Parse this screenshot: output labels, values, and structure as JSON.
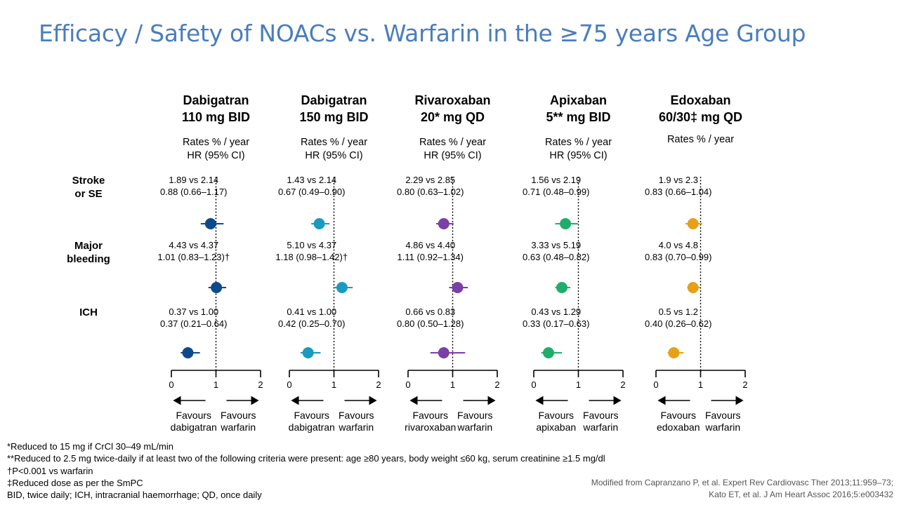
{
  "title": "Efficacy / Safety of NOACs vs. Warfarin in the ≥75 years Age Group",
  "chart_data": {
    "type": "forest",
    "x_ticks": [
      0,
      1,
      2
    ],
    "xlim": [
      0,
      2
    ],
    "reference_line": 1,
    "rows": [
      {
        "label_line1": "Stroke",
        "label_line2": "or SE"
      },
      {
        "label_line1": "Major",
        "label_line2": "bleeding"
      },
      {
        "label_line1": "ICH",
        "label_line2": ""
      }
    ],
    "drugs": [
      {
        "name_line1": "Dabigatran",
        "name_line2": "110 mg BID",
        "rates_label": "Rates % / year",
        "hr_label": "HR (95% CI)",
        "color": "#0c4a8c",
        "favours_left_1": "Favours",
        "favours_left_2": "dabigatran",
        "favours_right_1": "Favours",
        "favours_right_2": "warfarin",
        "results": [
          {
            "rates": "1.89 vs 2.14",
            "hr_text": "0.88 (0.66–1.17)",
            "hr": 0.88,
            "lo": 0.66,
            "hi": 1.17
          },
          {
            "rates": "4.43 vs 4.37",
            "hr_text": "1.01 (0.83–1.23)†",
            "hr": 1.01,
            "lo": 0.83,
            "hi": 1.23
          },
          {
            "rates": "0.37 vs 1.00",
            "hr_text": "0.37 (0.21–0.64)",
            "hr": 0.37,
            "lo": 0.21,
            "hi": 0.64
          }
        ]
      },
      {
        "name_line1": "Dabigatran",
        "name_line2": "150 mg BID",
        "rates_label": "Rates % / year",
        "hr_label": "HR (95% CI)",
        "color": "#1a9ac0",
        "favours_left_1": "Favours",
        "favours_left_2": "dabigatran",
        "favours_right_1": "Favours",
        "favours_right_2": "warfarin",
        "results": [
          {
            "rates": "1.43 vs 2.14",
            "hr_text": "0.67 (0.49–0.90)",
            "hr": 0.67,
            "lo": 0.49,
            "hi": 0.9
          },
          {
            "rates": "5.10 vs 4.37",
            "hr_text": "1.18 (0.98–1.42)†",
            "hr": 1.18,
            "lo": 0.98,
            "hi": 1.42
          },
          {
            "rates": "0.41 vs 1.00",
            "hr_text": "0.42 (0.25–0.70)",
            "hr": 0.42,
            "lo": 0.25,
            "hi": 0.7
          }
        ]
      },
      {
        "name_line1": "Rivaroxaban",
        "name_line2": "20* mg QD",
        "rates_label": "Rates % / year",
        "hr_label": "HR (95% CI)",
        "color": "#7b3fa6",
        "favours_left_1": "Favours",
        "favours_left_2": "rivaroxaban",
        "favours_right_1": "Favours",
        "favours_right_2": "warfarin",
        "results": [
          {
            "rates": "2.29 vs 2.85",
            "hr_text": "0.80 (0.63–1.02)",
            "hr": 0.8,
            "lo": 0.63,
            "hi": 1.02
          },
          {
            "rates": "4.86 vs 4.40",
            "hr_text": "1.11 (0.92–1.34)",
            "hr": 1.11,
            "lo": 0.92,
            "hi": 1.34
          },
          {
            "rates": "0.66 vs 0.83",
            "hr_text": "0.80 (0.50–1.28)",
            "hr": 0.8,
            "lo": 0.5,
            "hi": 1.28
          }
        ]
      },
      {
        "name_line1": "Apixaban",
        "name_line2": "5** mg BID",
        "rates_label": "Rates % / year",
        "hr_label": "HR (95% CI)",
        "color": "#1fae6a",
        "favours_left_1": "Favours",
        "favours_left_2": "apixaban",
        "favours_right_1": "Favours",
        "favours_right_2": "warfarin",
        "results": [
          {
            "rates": "1.56 vs 2.19",
            "hr_text": "0.71 (0.48–0.99)",
            "hr": 0.71,
            "lo": 0.48,
            "hi": 0.99
          },
          {
            "rates": "3.33 vs 5.19",
            "hr_text": "0.63 (0.48–0.82)",
            "hr": 0.63,
            "lo": 0.48,
            "hi": 0.82
          },
          {
            "rates": "0.43 vs 1.29",
            "hr_text": "0.33 (0.17–0.63)",
            "hr": 0.33,
            "lo": 0.17,
            "hi": 0.63
          }
        ]
      },
      {
        "name_line1": "Edoxaban",
        "name_line2": "60/30‡ mg QD",
        "rates_label": "Rates % / year",
        "hr_label": "",
        "color": "#e6a118",
        "favours_left_1": "Favours",
        "favours_left_2": "edoxaban",
        "favours_right_1": "Favours",
        "favours_right_2": "warfarin",
        "results": [
          {
            "rates": "1.9 vs 2.3",
            "hr_text": "0.83 (0.66–1.04)",
            "hr": 0.83,
            "lo": 0.66,
            "hi": 1.04
          },
          {
            "rates": "4.0 vs 4.8",
            "hr_text": "0.83 (0.70–0.99)",
            "hr": 0.83,
            "lo": 0.7,
            "hi": 0.99
          },
          {
            "rates": "0.5 vs 1.2",
            "hr_text": "0.40 (0.26–0.62)",
            "hr": 0.4,
            "lo": 0.26,
            "hi": 0.62
          }
        ]
      }
    ]
  },
  "footnotes": [
    "*Reduced to 15 mg if CrCl 30–49 mL/min",
    "**Reduced to 2.5 mg twice-daily if at least two of the following criteria were present: age ≥80 years, body weight ≤60 kg, serum creatinine ≥1.5 mg/dl",
    "†P<0.001 vs warfarin",
    "‡Reduced dose as per the SmPC",
    "BID, twice daily; ICH, intracranial haemorrhage; QD, once daily"
  ],
  "source": [
    "Modified from Capranzano P, et al. Expert Rev Cardiovasc Ther 2013;11:959–73;",
    "Kato ET, et al. J Am Heart Assoc 2016;5:e003432"
  ]
}
